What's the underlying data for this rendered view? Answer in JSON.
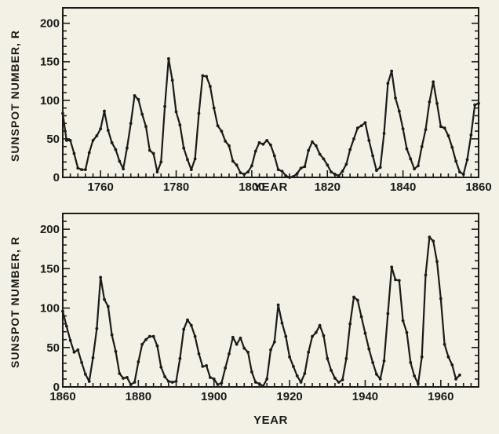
{
  "chart_data": [
    {
      "type": "line",
      "xlabel": "YEAR",
      "ylabel": "SUNSPOT NUMBER, R",
      "xlim": [
        1750,
        1860
      ],
      "ylim": [
        0,
        220
      ],
      "x_ticks": [
        1760,
        1780,
        1800,
        1820,
        1840,
        1860
      ],
      "y_ticks": [
        0,
        50,
        100,
        150,
        200
      ],
      "grid": false,
      "x": [
        1750,
        1751,
        1752,
        1753,
        1754,
        1755,
        1756,
        1757,
        1758,
        1759,
        1760,
        1761,
        1762,
        1763,
        1764,
        1765,
        1766,
        1767,
        1768,
        1769,
        1770,
        1771,
        1772,
        1773,
        1774,
        1775,
        1776,
        1777,
        1778,
        1779,
        1780,
        1781,
        1782,
        1783,
        1784,
        1785,
        1786,
        1787,
        1788,
        1789,
        1790,
        1791,
        1792,
        1793,
        1794,
        1795,
        1796,
        1797,
        1798,
        1799,
        1800,
        1801,
        1802,
        1803,
        1804,
        1805,
        1806,
        1807,
        1808,
        1809,
        1810,
        1811,
        1812,
        1813,
        1814,
        1815,
        1816,
        1817,
        1818,
        1819,
        1820,
        1821,
        1822,
        1823,
        1824,
        1825,
        1826,
        1827,
        1828,
        1829,
        1830,
        1831,
        1832,
        1833,
        1834,
        1835,
        1836,
        1837,
        1838,
        1839,
        1840,
        1841,
        1842,
        1843,
        1844,
        1845,
        1846,
        1847,
        1848,
        1849,
        1850,
        1851,
        1852,
        1853,
        1854,
        1855,
        1856,
        1857,
        1858,
        1859,
        1860
      ],
      "series": [
        {
          "values": [
            83,
            48,
            48,
            31,
            12,
            10,
            10,
            32,
            48,
            54,
            63,
            86,
            61,
            45,
            36,
            21,
            11,
            38,
            70,
            106,
            101,
            82,
            66,
            35,
            31,
            7,
            20,
            92,
            154,
            126,
            85,
            68,
            38,
            23,
            10,
            24,
            83,
            132,
            131,
            118,
            90,
            67,
            60,
            47,
            41,
            21,
            16,
            6,
            4,
            7,
            15,
            34,
            45,
            43,
            48,
            42,
            28,
            10,
            8,
            2,
            0,
            1,
            5,
            12,
            14,
            35,
            46,
            41,
            30,
            24,
            16,
            7,
            4,
            2,
            8,
            17,
            36,
            50,
            64,
            67,
            71,
            48,
            28,
            9,
            13,
            57,
            122,
            138,
            103,
            86,
            63,
            37,
            24,
            11,
            15,
            40,
            62,
            98,
            124,
            96,
            66,
            64,
            54,
            39,
            21,
            7,
            4,
            23,
            55,
            94,
            96
          ]
        }
      ]
    },
    {
      "type": "line",
      "xlabel": "YEAR",
      "ylabel": "SUNSPOT NUMBER, R",
      "xlim": [
        1860,
        1970
      ],
      "ylim": [
        0,
        220
      ],
      "x_ticks": [
        1860,
        1880,
        1900,
        1920,
        1940,
        1960
      ],
      "y_ticks": [
        0,
        50,
        100,
        150,
        200
      ],
      "grid": false,
      "x": [
        1860,
        1861,
        1862,
        1863,
        1864,
        1865,
        1866,
        1867,
        1868,
        1869,
        1870,
        1871,
        1872,
        1873,
        1874,
        1875,
        1876,
        1877,
        1878,
        1879,
        1880,
        1881,
        1882,
        1883,
        1884,
        1885,
        1886,
        1887,
        1888,
        1889,
        1890,
        1891,
        1892,
        1893,
        1894,
        1895,
        1896,
        1897,
        1898,
        1899,
        1900,
        1901,
        1902,
        1903,
        1904,
        1905,
        1906,
        1907,
        1908,
        1909,
        1910,
        1911,
        1912,
        1913,
        1914,
        1915,
        1916,
        1917,
        1918,
        1919,
        1920,
        1921,
        1922,
        1923,
        1924,
        1925,
        1926,
        1927,
        1928,
        1929,
        1930,
        1931,
        1932,
        1933,
        1934,
        1935,
        1936,
        1937,
        1938,
        1939,
        1940,
        1941,
        1942,
        1943,
        1944,
        1945,
        1946,
        1947,
        1948,
        1949,
        1950,
        1951,
        1952,
        1953,
        1954,
        1955,
        1956,
        1957,
        1958,
        1959,
        1960,
        1961,
        1962,
        1963,
        1964,
        1965
      ],
      "series": [
        {
          "values": [
            96,
            77,
            59,
            44,
            47,
            31,
            16,
            7,
            37,
            74,
            139,
            111,
            102,
            66,
            45,
            17,
            11,
            12,
            3,
            6,
            32,
            54,
            60,
            64,
            64,
            52,
            25,
            13,
            7,
            6,
            7,
            36,
            73,
            85,
            78,
            64,
            42,
            26,
            27,
            12,
            10,
            3,
            5,
            24,
            42,
            63,
            54,
            62,
            49,
            44,
            19,
            6,
            4,
            1,
            10,
            47,
            57,
            104,
            81,
            64,
            38,
            26,
            14,
            6,
            17,
            44,
            64,
            69,
            78,
            65,
            36,
            21,
            11,
            6,
            9,
            36,
            80,
            114,
            110,
            89,
            68,
            48,
            31,
            16,
            10,
            33,
            93,
            152,
            136,
            135,
            84,
            69,
            31,
            14,
            4,
            38,
            142,
            190,
            185,
            159,
            112,
            54,
            38,
            28,
            10,
            15
          ]
        }
      ]
    }
  ]
}
